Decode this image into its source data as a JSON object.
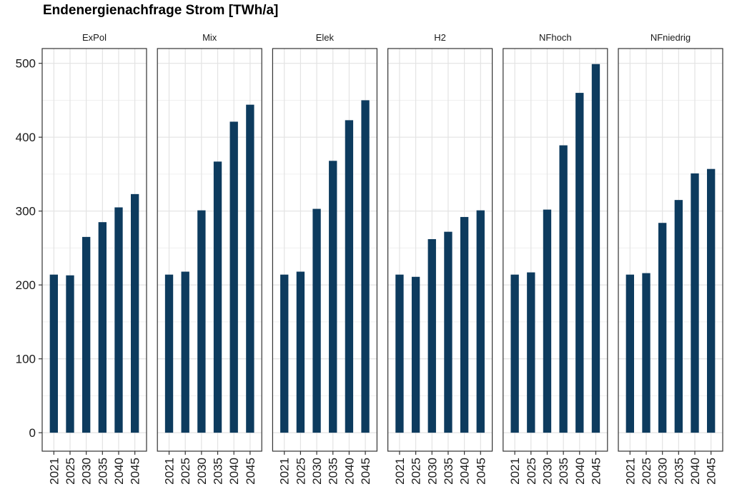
{
  "chart_data": {
    "type": "bar",
    "title": "Endenergienachfrage Strom [TWh/a]",
    "xlabel": "",
    "ylabel": "",
    "ylim": [
      -25,
      520
    ],
    "yticks": [
      0,
      100,
      200,
      300,
      400,
      500
    ],
    "categories": [
      "2021",
      "2025",
      "2030",
      "2035",
      "2040",
      "2045"
    ],
    "bar_color": "#0d3b5e",
    "grid": true,
    "facets": [
      {
        "name": "ExPol",
        "values": [
          214,
          213,
          265,
          285,
          305,
          323
        ]
      },
      {
        "name": "Mix",
        "values": [
          214,
          218,
          301,
          367,
          421,
          444
        ]
      },
      {
        "name": "Elek",
        "values": [
          214,
          218,
          303,
          368,
          423,
          450
        ]
      },
      {
        "name": "H2",
        "values": [
          214,
          211,
          262,
          272,
          292,
          301
        ]
      },
      {
        "name": "NFhoch",
        "values": [
          214,
          217,
          302,
          389,
          460,
          499
        ]
      },
      {
        "name": "NFniedrig",
        "values": [
          214,
          216,
          284,
          315,
          351,
          357
        ]
      }
    ]
  }
}
